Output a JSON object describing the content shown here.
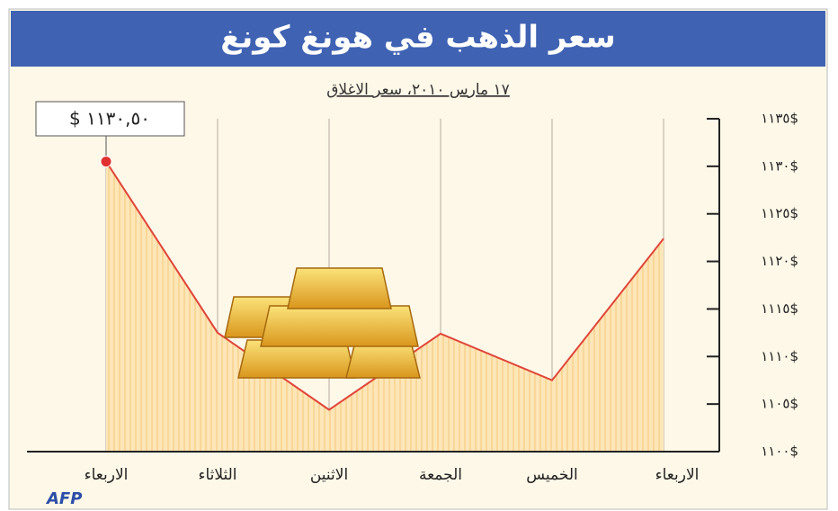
{
  "chart_data": {
    "type": "area",
    "title": "سعر الذهب في هونغ كونغ",
    "subtitle": "١٧ مارس ٢٠١٠، سعر الاغلاق",
    "categories": [
      "الاربعاء",
      "الثلاثاء",
      "الاثنين",
      "الجمعة",
      "الخميس",
      "الاربعاء"
    ],
    "series": [
      {
        "color": "#e0453a",
        "values": [
          1130.5,
          1112.5,
          1104.4,
          1112.4,
          1107.5,
          1122.4
        ],
        "value_labels": [
          "$ ١١٣٠,٥٠",
          null,
          null,
          null,
          null,
          null
        ]
      }
    ],
    "ylim": [
      1100,
      1135
    ],
    "yticks": [
      {
        "value": 1100,
        "label": "١١٠٠$"
      },
      {
        "value": 1105,
        "label": "١١٠٥$"
      },
      {
        "value": 1110,
        "label": "١١١٠$"
      },
      {
        "value": 1115,
        "label": "١١١٥$"
      },
      {
        "value": 1120,
        "label": "١١٢٠$"
      },
      {
        "value": 1125,
        "label": "١١٢٥$"
      },
      {
        "value": 1130,
        "label": "١١٣٠$"
      },
      {
        "value": 1135,
        "label": "١١٣٥$"
      }
    ],
    "y_axis_side": "right",
    "credit": "AFP"
  }
}
